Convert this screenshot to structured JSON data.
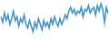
{
  "chart_data": {
    "type": "line",
    "color": "#3a8fd8",
    "grid": false,
    "tick_labels": false,
    "categories": [
      null,
      null,
      null,
      null,
      null,
      null,
      null,
      null,
      null,
      null,
      null,
      null,
      null,
      null,
      null,
      null,
      null,
      null,
      null,
      null,
      null,
      null,
      null,
      null,
      null,
      null,
      null,
      null,
      null,
      null,
      null,
      null,
      null,
      null,
      null,
      null,
      null,
      null,
      null,
      null,
      null,
      null,
      null,
      null,
      null,
      null,
      null,
      null,
      null,
      null,
      null,
      null,
      null,
      null,
      null,
      null,
      null,
      null,
      null,
      null,
      null
    ],
    "values": [
      60,
      45,
      70,
      50,
      65,
      40,
      55,
      75,
      50,
      60,
      35,
      55,
      45,
      65,
      40,
      30,
      50,
      35,
      20,
      45,
      30,
      55,
      40,
      25,
      50,
      35,
      45,
      30,
      55,
      40,
      60,
      45,
      35,
      55,
      40,
      50,
      65,
      55,
      75,
      85,
      70,
      80,
      65,
      75,
      70,
      85,
      60,
      80,
      75,
      90,
      70,
      80,
      85,
      65,
      90,
      75,
      95,
      80,
      45,
      85,
      70
    ]
  }
}
